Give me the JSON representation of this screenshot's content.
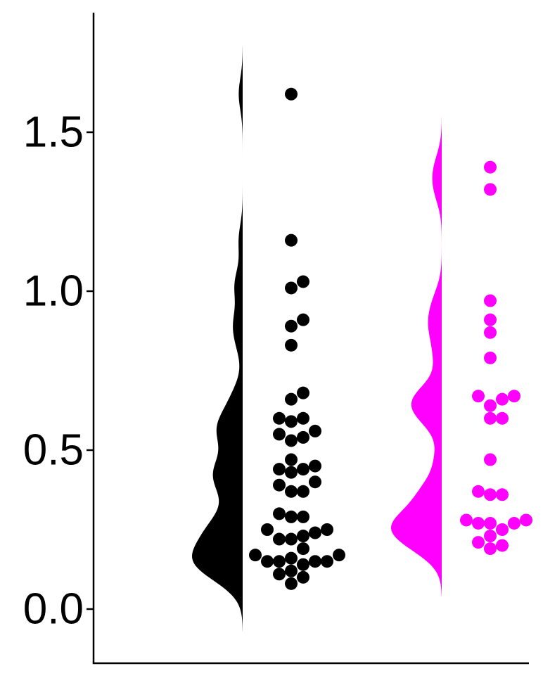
{
  "chart_data": {
    "type": "scatter",
    "title": "",
    "xlabel": "",
    "ylabel": "",
    "ylim": [
      -0.17,
      1.87
    ],
    "yticks": [
      0.0,
      0.5,
      1.0,
      1.5
    ],
    "ytick_labels": [
      "0.0",
      "0.5",
      "1.0",
      "1.5"
    ],
    "grid": false,
    "legend": "none",
    "series": [
      {
        "color": "#000000",
        "x_range": [
          -0.07,
          1.77
        ],
        "values": [
          1.62,
          1.16,
          1.03,
          1.01,
          0.91,
          0.89,
          0.83,
          0.68,
          0.66,
          0.6,
          0.59,
          0.6,
          0.56,
          0.55,
          0.54,
          0.53,
          0.47,
          0.45,
          0.44,
          0.44,
          0.43,
          0.4,
          0.39,
          0.37,
          0.37,
          0.3,
          0.29,
          0.29,
          0.25,
          0.25,
          0.24,
          0.23,
          0.22,
          0.22,
          0.19,
          0.17,
          0.17,
          0.16,
          0.15,
          0.15,
          0.15,
          0.15,
          0.14,
          0.12,
          0.11,
          0.1,
          0.08
        ]
      },
      {
        "color": "#ff00ff",
        "x_range": [
          0.04,
          1.55
        ],
        "values": [
          1.39,
          1.32,
          0.97,
          0.91,
          0.87,
          0.79,
          0.67,
          0.66,
          0.67,
          0.64,
          0.6,
          0.6,
          0.47,
          0.37,
          0.36,
          0.36,
          0.28,
          0.27,
          0.27,
          0.27,
          0.28,
          0.25,
          0.23,
          0.21,
          0.2,
          0.19
        ]
      }
    ]
  }
}
